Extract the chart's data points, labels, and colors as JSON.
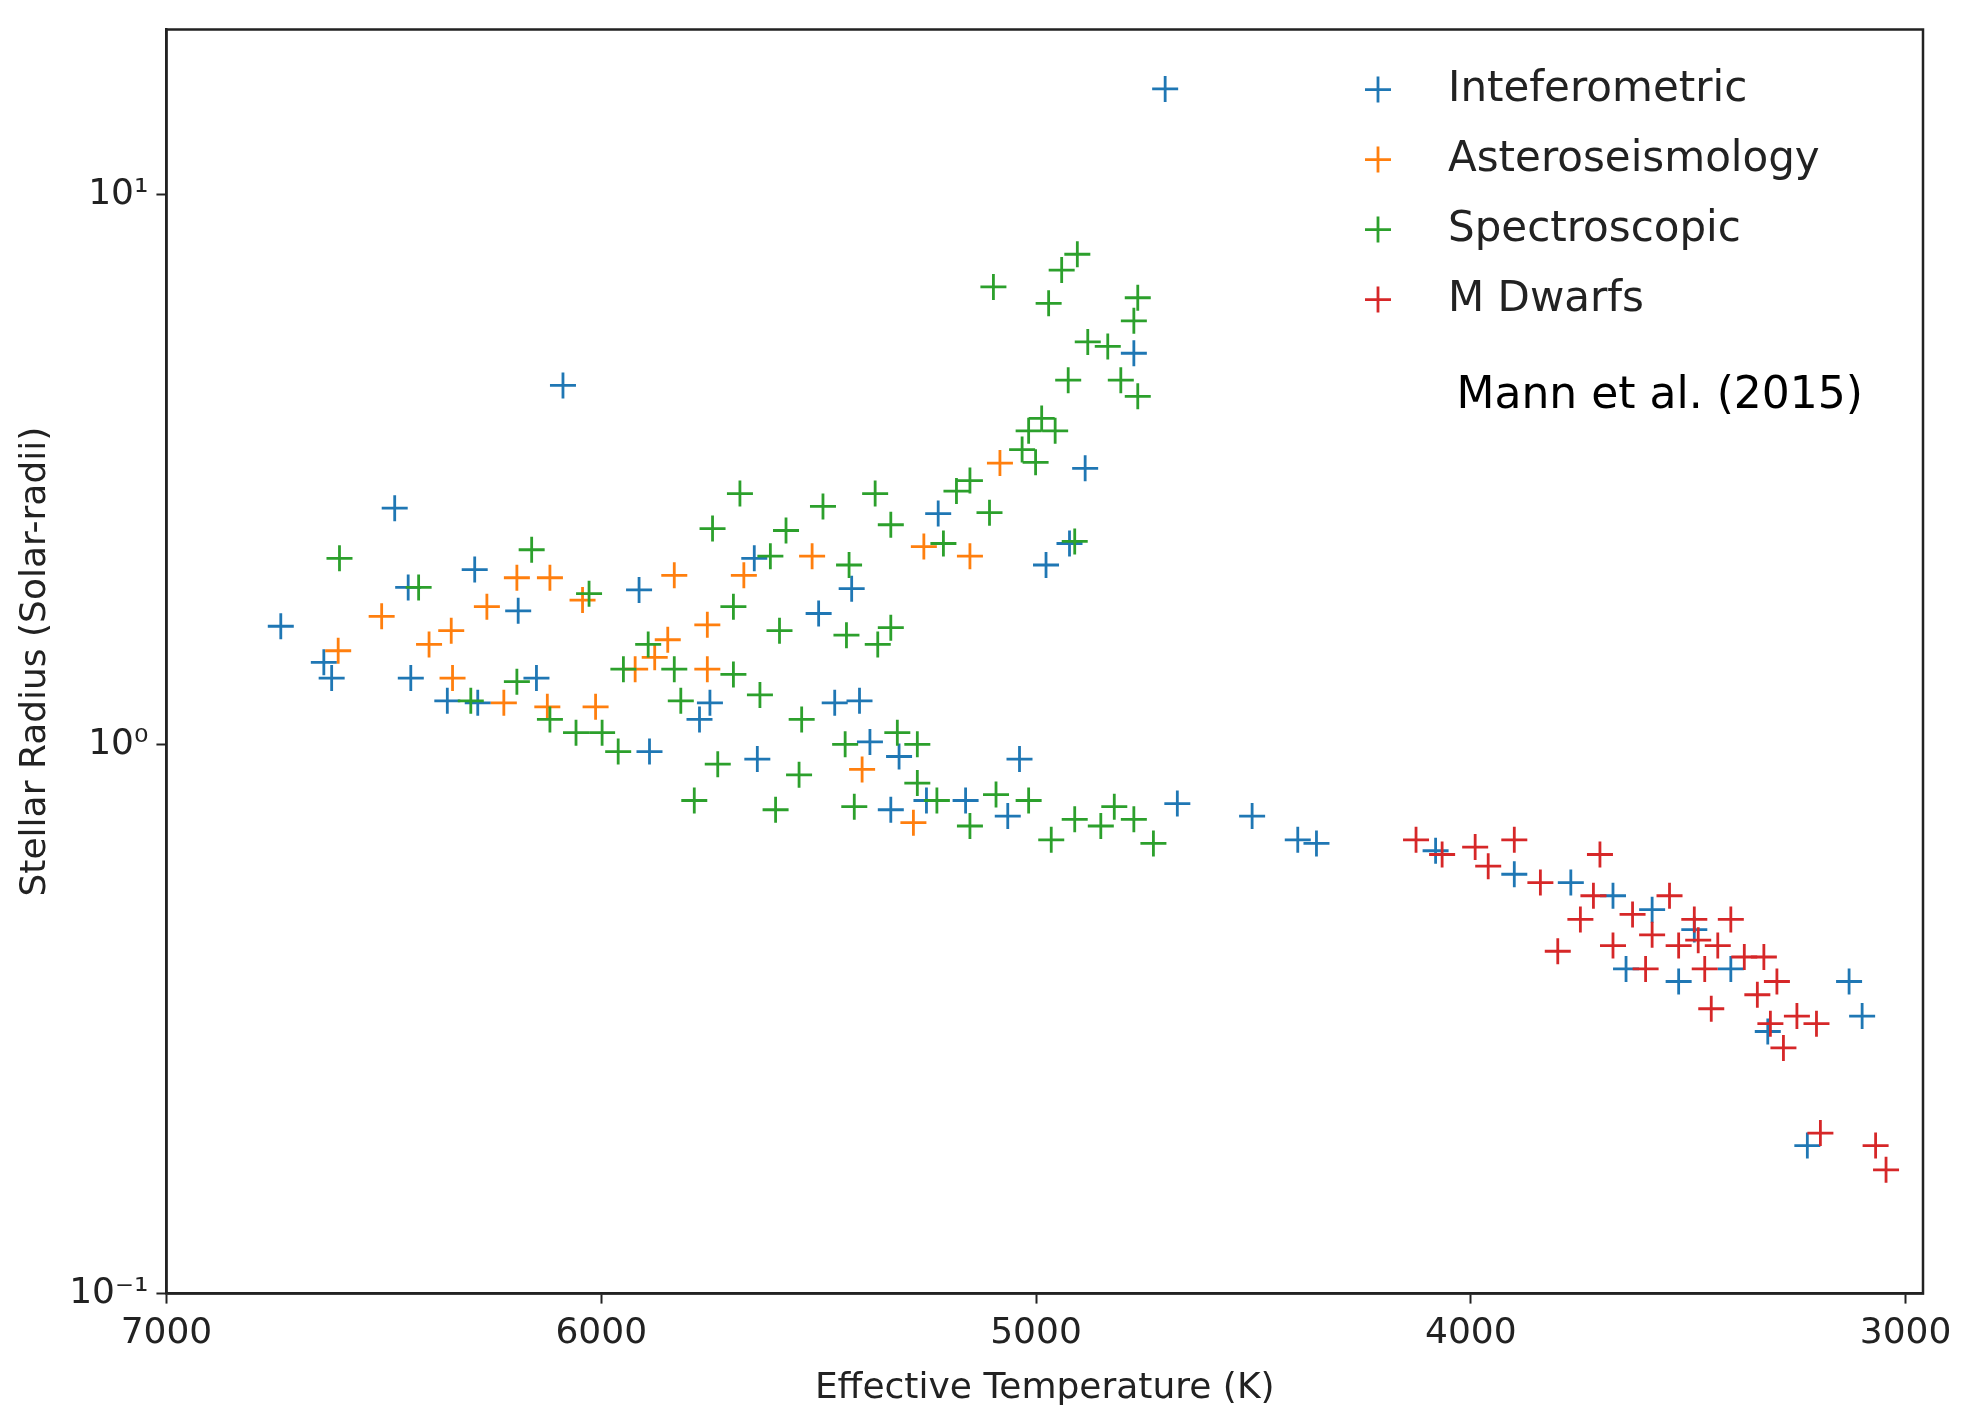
{
  "chart_data": {
    "type": "scatter",
    "xlabel": "Effective Temperature (K)",
    "ylabel": "Stellar Radius (Solar-radii)",
    "annotations": [
      "Mann et al. (2015)"
    ],
    "xlim": [
      7000,
      2960
    ],
    "xticks": [
      7000,
      6000,
      5000,
      4000,
      3000
    ],
    "ylim": [
      0.1,
      20
    ],
    "yticks": [
      {
        "value": 0.1,
        "label": "10⁻¹"
      },
      {
        "value": 1,
        "label": "10⁰"
      },
      {
        "value": 10,
        "label": "10¹"
      }
    ],
    "log": "y",
    "grid": false,
    "legend": "top right",
    "marker": "cross",
    "series": [
      {
        "name": "Inteferometric",
        "color": "#1f77b4",
        "x": [
          4703,
          6088,
          6475,
          6737,
          6638,
          6620,
          6444,
          6438,
          6354,
          6284,
          6291,
          6191,
          6149,
          5913,
          5889,
          5750,
          5774,
          5648,
          5641,
          5500,
          5463,
          5424,
          5406,
          5382,
          5315,
          5334,
          5225,
          5252,
          5162,
          5038,
          5065,
          4977,
          4923,
          4887,
          4775,
          4675,
          4503,
          4398,
          4355,
          4081,
          3900,
          3770,
          3673,
          3583,
          3486,
          3402,
          3317,
          3130,
          3100,
          3226,
          3643,
          3522
        ],
        "values": [
          15.6,
          4.5,
          2.69,
          1.64,
          1.41,
          1.32,
          1.93,
          1.32,
          1.2,
          1.19,
          2.08,
          1.75,
          1.32,
          1.91,
          0.97,
          1.19,
          1.11,
          2.18,
          0.94,
          1.73,
          1.19,
          1.92,
          1.2,
          1.01,
          0.95,
          0.76,
          2.63,
          0.79,
          0.79,
          0.94,
          0.74,
          2.12,
          2.32,
          3.18,
          5.15,
          0.78,
          0.74,
          0.67,
          0.66,
          0.64,
          0.58,
          0.56,
          0.53,
          0.5,
          0.46,
          0.39,
          0.3,
          0.37,
          0.32,
          0.186,
          0.39,
          0.37
        ]
      },
      {
        "name": "Asteroseismology",
        "color": "#ff7f0e",
        "x": [
          6505,
          6605,
          6396,
          6342,
          6345,
          6263,
          6194,
          6118,
          6224,
          6124,
          6043,
          6013,
          5922,
          5847,
          5832,
          5756,
          5672,
          5515,
          5400,
          5282,
          5258,
          5152,
          5083,
          5756,
          5877
        ],
        "values": [
          1.71,
          1.48,
          1.52,
          1.32,
          1.61,
          1.78,
          2.01,
          2.01,
          1.19,
          1.17,
          1.83,
          1.17,
          1.37,
          1.55,
          2.03,
          1.65,
          2.03,
          2.2,
          0.9,
          0.72,
          2.29,
          2.2,
          3.25,
          1.37,
          1.44
        ]
      },
      {
        "name": "Spectroscopic",
        "color": "#2ca02c",
        "x": [
          6602,
          6420,
          6160,
          6194,
          6118,
          6028,
          5998,
          5961,
          5892,
          5832,
          5786,
          5732,
          5744,
          5681,
          5611,
          5590,
          5599,
          5575,
          5635,
          5545,
          5490,
          5436,
          5370,
          5334,
          5334,
          5418,
          5319,
          5273,
          5228,
          5183,
          5152,
          5152,
          5107,
          5098,
          5032,
          5017,
          4987,
          4971,
          4941,
          4905,
          4926,
          4881,
          4835,
          4805,
          4775,
          4766,
          4766,
          4911,
          5001,
          4956,
          5017,
          4965,
          4911,
          4851,
          4775,
          4730,
          4820,
          5092,
          5273,
          5439,
          5539,
          5696,
          5817,
          5949,
          6058,
          6300,
          5430,
          5364,
          5213,
          5696
        ],
        "values": [
          2.18,
          1.93,
          2.26,
          1.3,
          1.11,
          1.88,
          1.05,
          0.97,
          1.52,
          1.37,
          0.79,
          0.92,
          2.47,
          2.86,
          2.2,
          1.61,
          0.76,
          2.45,
          1.23,
          0.88,
          2.71,
          1.58,
          2.86,
          2.51,
          1.63,
          0.77,
          1.05,
          0.85,
          0.79,
          2.89,
          3.02,
          0.71,
          2.64,
          6.8,
          3.44,
          3.72,
          3.92,
          6.35,
          7.3,
          7.8,
          4.6,
          5.4,
          5.3,
          4.6,
          5.9,
          6.5,
          4.3,
          2.34,
          3.26,
          3.72,
          0.79,
          0.67,
          0.73,
          0.71,
          0.73,
          0.66,
          0.77,
          0.81,
          1.0,
          1.0,
          1.11,
          1.34,
          1.2,
          1.37,
          1.05,
          1.2,
          2.12,
          1.52,
          2.32,
          1.78
        ]
      },
      {
        "name": "M Dwarfs",
        "color": "#d62728",
        "x": [
          4126,
          4066,
          3990,
          3960,
          3900,
          3840,
          3800,
          3703,
          3673,
          3628,
          3598,
          3543,
          3522,
          3486,
          3462,
          3447,
          3432,
          3402,
          3371,
          3341,
          3311,
          3326,
          3296,
          3281,
          3250,
          3205,
          3196,
          3069,
          3045,
          3748,
          3718,
          3583,
          3477
        ],
        "values": [
          0.67,
          0.63,
          0.65,
          0.6,
          0.67,
          0.56,
          0.42,
          0.63,
          0.43,
          0.49,
          0.39,
          0.53,
          0.43,
          0.48,
          0.39,
          0.33,
          0.43,
          0.48,
          0.41,
          0.35,
          0.31,
          0.41,
          0.37,
          0.28,
          0.32,
          0.31,
          0.196,
          0.186,
          0.168,
          0.48,
          0.53,
          0.45,
          0.44
        ]
      }
    ]
  }
}
